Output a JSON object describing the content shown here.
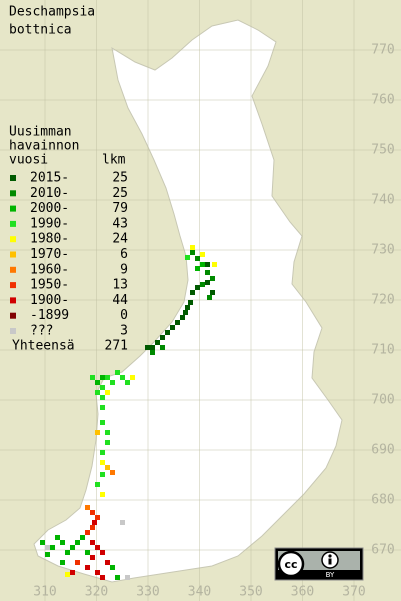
{
  "title": [
    "Deschampsia",
    "bottnica"
  ],
  "legend": {
    "header": [
      "Uusimman",
      "havainnon",
      "vuosi"
    ],
    "count_header": "lkm",
    "entries": [
      {
        "label": "2015-",
        "count": 25,
        "color": "#005a00"
      },
      {
        "label": "2010-",
        "count": 25,
        "color": "#008a00"
      },
      {
        "label": "2000-",
        "count": 79,
        "color": "#00b400"
      },
      {
        "label": "1990-",
        "count": 43,
        "color": "#20e020"
      },
      {
        "label": "1980-",
        "count": 24,
        "color": "#ffff00"
      },
      {
        "label": "1970-",
        "count": 6,
        "color": "#ffc000"
      },
      {
        "label": "1960-",
        "count": 9,
        "color": "#ff7800"
      },
      {
        "label": "1950-",
        "count": 13,
        "color": "#f03000"
      },
      {
        "label": "1900-",
        "count": 44,
        "color": "#d00000"
      },
      {
        "label": "-1899",
        "count": 0,
        "color": "#800000"
      },
      {
        "label": "???",
        "count": 3,
        "color": "#c8c8c8"
      }
    ],
    "total": {
      "label": "Yhteensä",
      "count": 271
    }
  },
  "x_ticks": [
    310,
    320,
    330,
    340,
    350,
    360,
    370
  ],
  "y_ticks": [
    670,
    680,
    690,
    700,
    710,
    720,
    730,
    740,
    750,
    760,
    770
  ],
  "license": {
    "cc": "cc",
    "by": "BY"
  }
}
